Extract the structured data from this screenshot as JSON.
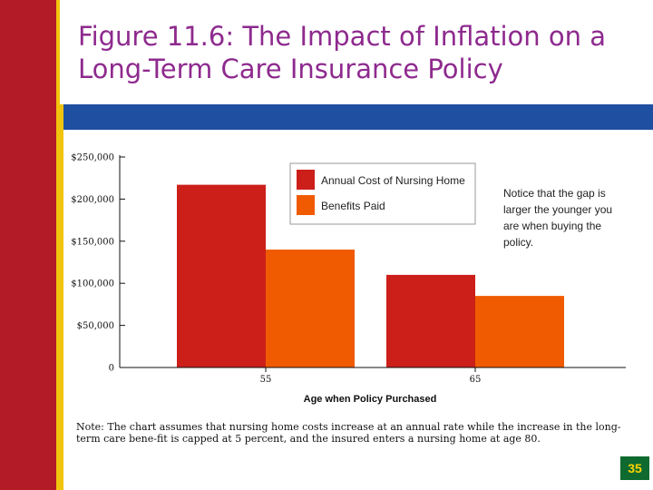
{
  "slide": {
    "title": "Figure 11.6: The Impact of Inflation on a Long-Term Care Insurance Policy",
    "footnote": "Note: The chart assumes that nursing home costs increase at an annual rate while the increase in the long-term care bene-fit is capped at 5 percent, and the insured enters a nursing home at age 80.",
    "page_number": "35"
  },
  "chart_data": {
    "type": "bar",
    "title": "",
    "xlabel": "Age when Policy Purchased",
    "ylabel": "",
    "categories": [
      "55",
      "65"
    ],
    "series": [
      {
        "name": "Annual Cost of Nursing Home",
        "values": [
          217000,
          110000
        ],
        "color": "#cc1f1a"
      },
      {
        "name": "Benefits Paid",
        "values": [
          140000,
          85000
        ],
        "color": "#f05a00"
      }
    ],
    "ylim": [
      0,
      250000
    ],
    "y_ticks": [
      {
        "value": 0,
        "label": "0"
      },
      {
        "value": 50000,
        "label": "$50,000"
      },
      {
        "value": 100000,
        "label": "$100,000"
      },
      {
        "value": 150000,
        "label": "$150,000"
      },
      {
        "value": 200000,
        "label": "$200,000"
      },
      {
        "value": 250000,
        "label": "$250,000"
      }
    ],
    "grid": false,
    "legend_position": "top-right",
    "annotation_lines": [
      "Notice that the gap is",
      "larger the younger you",
      "are when buying the",
      "policy."
    ]
  },
  "colors": {
    "left_bar": "#b31b27",
    "accent_stripe": "#f1c40f",
    "top_rule": "#1f4fa0",
    "title": "#8e2a8e",
    "page_badge": "#0f6a2f"
  }
}
